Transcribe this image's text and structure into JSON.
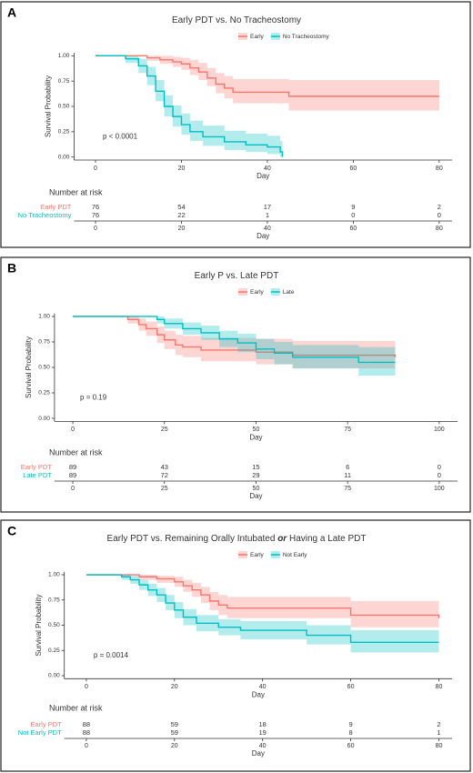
{
  "chart_data": [
    {
      "type": "survival",
      "panel": "A",
      "title_parts": [
        "Early PDT vs. No Tracheostomy"
      ],
      "xlabel": "Day",
      "ylabel": "Survival Probability",
      "annotation": "p < 0.0001",
      "risk_title": "Number at risk",
      "xlim": [
        -5,
        83
      ],
      "xticks": [
        0,
        20,
        40,
        60,
        80
      ],
      "ylim": [
        -0.03,
        1.03
      ],
      "yticks": [
        {
          "value": 0,
          "label": "0.00"
        },
        {
          "value": 0.25,
          "label": "0.25"
        },
        {
          "value": 0.5,
          "label": "0.50"
        },
        {
          "value": 0.75,
          "label": "0.75"
        },
        {
          "value": 1,
          "label": "1.00"
        }
      ],
      "series": [
        {
          "name": "Early",
          "risk_label": "Early PDT",
          "color": "#F8766D",
          "x": [
            0,
            8,
            12,
            15,
            18,
            20,
            22,
            24,
            26,
            28,
            30,
            32,
            45,
            80
          ],
          "values": [
            1,
            1,
            0.98,
            0.96,
            0.94,
            0.92,
            0.88,
            0.84,
            0.78,
            0.72,
            0.68,
            0.64,
            0.6,
            0.6
          ],
          "lower": [
            1,
            1,
            0.95,
            0.92,
            0.89,
            0.86,
            0.81,
            0.76,
            0.7,
            0.63,
            0.58,
            0.53,
            0.46,
            0.46
          ],
          "upper": [
            1,
            1,
            1,
            1,
            0.99,
            0.98,
            0.96,
            0.93,
            0.88,
            0.83,
            0.8,
            0.77,
            0.76,
            0.76
          ],
          "at_risk": [
            76,
            54,
            17,
            9,
            2
          ]
        },
        {
          "name": "No Tracheostomy",
          "risk_label": "No Tracheostomy",
          "color": "#00BFC4",
          "x": [
            0,
            7,
            10,
            12,
            14,
            16,
            18,
            20,
            22,
            25,
            30,
            35,
            40,
            43,
            43.5
          ],
          "values": [
            1,
            0.97,
            0.9,
            0.8,
            0.65,
            0.5,
            0.4,
            0.32,
            0.25,
            0.2,
            0.15,
            0.12,
            0.1,
            0.05,
            0
          ],
          "lower": [
            1,
            0.93,
            0.83,
            0.71,
            0.55,
            0.4,
            0.3,
            0.22,
            0.16,
            0.11,
            0.07,
            0.05,
            0.03,
            0,
            0
          ],
          "upper": [
            1,
            1,
            0.97,
            0.89,
            0.76,
            0.61,
            0.51,
            0.43,
            0.36,
            0.31,
            0.26,
            0.23,
            0.21,
            0.16,
            0.16
          ],
          "at_risk": [
            76,
            22,
            1,
            0,
            0
          ]
        }
      ]
    },
    {
      "type": "survival",
      "panel": "B",
      "title_parts": [
        "Early P vs. Late PDT"
      ],
      "xlabel": "Day",
      "ylabel": "Survival Probability",
      "annotation": "p = 0.19",
      "risk_title": "Number at risk",
      "xlim": [
        -5,
        105
      ],
      "xticks": [
        0,
        25,
        50,
        75,
        100
      ],
      "ylim": [
        -0.03,
        1.03
      ],
      "yticks": [
        {
          "value": 0,
          "label": "0.00"
        },
        {
          "value": 0.25,
          "label": "0.25"
        },
        {
          "value": 0.5,
          "label": "0.50"
        },
        {
          "value": 0.75,
          "label": "0.75"
        },
        {
          "value": 1,
          "label": "1.00"
        }
      ],
      "series": [
        {
          "name": "Early",
          "risk_label": "Early PDT",
          "color": "#F8766D",
          "x": [
            0,
            10,
            15,
            18,
            20,
            23,
            25,
            28,
            30,
            35,
            50,
            60,
            88
          ],
          "values": [
            1,
            1,
            0.97,
            0.92,
            0.88,
            0.82,
            0.77,
            0.72,
            0.7,
            0.67,
            0.65,
            0.62,
            0.6
          ],
          "lower": [
            1,
            1,
            0.93,
            0.86,
            0.81,
            0.74,
            0.68,
            0.62,
            0.6,
            0.56,
            0.53,
            0.49,
            0.46
          ],
          "upper": [
            1,
            1,
            1,
            0.98,
            0.95,
            0.9,
            0.86,
            0.82,
            0.81,
            0.79,
            0.78,
            0.76,
            0.75
          ],
          "at_risk": [
            89,
            43,
            15,
            6,
            0
          ]
        },
        {
          "name": "Late",
          "risk_label": "Late PDT",
          "color": "#00BFC4",
          "x": [
            0,
            20,
            23,
            25,
            30,
            35,
            40,
            45,
            50,
            55,
            60,
            70,
            78,
            88
          ],
          "values": [
            1,
            1,
            0.97,
            0.93,
            0.88,
            0.84,
            0.78,
            0.74,
            0.68,
            0.64,
            0.6,
            0.6,
            0.55,
            0.55
          ],
          "lower": [
            1,
            1,
            0.93,
            0.88,
            0.82,
            0.77,
            0.7,
            0.65,
            0.58,
            0.53,
            0.49,
            0.49,
            0.42,
            0.42
          ],
          "upper": [
            1,
            1,
            1,
            0.98,
            0.94,
            0.91,
            0.86,
            0.83,
            0.78,
            0.75,
            0.72,
            0.72,
            0.7,
            0.7
          ],
          "at_risk": [
            89,
            72,
            29,
            11,
            0
          ]
        }
      ]
    },
    {
      "type": "survival",
      "panel": "C",
      "title_parts": [
        "Early PDT vs. Remaining Orally Intubated ",
        "or",
        " Having a Late PDT"
      ],
      "xlabel": "Day",
      "ylabel": "Survival Probability",
      "annotation": "p = 0.0014",
      "risk_title": "Number at risk",
      "xlim": [
        -5,
        83
      ],
      "xticks": [
        0,
        20,
        40,
        60,
        80
      ],
      "ylim": [
        -0.03,
        1.03
      ],
      "yticks": [
        {
          "value": 0,
          "label": "0.00"
        },
        {
          "value": 0.25,
          "label": "0.25"
        },
        {
          "value": 0.5,
          "label": "0.50"
        },
        {
          "value": 0.75,
          "label": "0.75"
        },
        {
          "value": 1,
          "label": "1.00"
        }
      ],
      "series": [
        {
          "name": "Early",
          "risk_label": "Early PDT",
          "color": "#F8766D",
          "x": [
            0,
            8,
            12,
            16,
            20,
            22,
            24,
            26,
            28,
            30,
            32,
            60,
            80
          ],
          "values": [
            1,
            1,
            0.98,
            0.96,
            0.93,
            0.89,
            0.85,
            0.8,
            0.74,
            0.7,
            0.67,
            0.6,
            0.57
          ],
          "lower": [
            1,
            1,
            0.95,
            0.92,
            0.88,
            0.83,
            0.78,
            0.72,
            0.65,
            0.6,
            0.57,
            0.48,
            0.42
          ],
          "upper": [
            1,
            1,
            1,
            0.99,
            0.98,
            0.95,
            0.92,
            0.88,
            0.83,
            0.8,
            0.78,
            0.74,
            0.72
          ],
          "at_risk": [
            88,
            59,
            18,
            9,
            2
          ]
        },
        {
          "name": "Not Early",
          "risk_label": "Not Early PDT",
          "color": "#00BFC4",
          "x": [
            0,
            8,
            10,
            12,
            14,
            16,
            18,
            20,
            22,
            25,
            30,
            35,
            50,
            60,
            80
          ],
          "values": [
            1,
            0.98,
            0.95,
            0.9,
            0.85,
            0.8,
            0.72,
            0.65,
            0.58,
            0.52,
            0.48,
            0.45,
            0.4,
            0.33,
            0.33
          ],
          "lower": [
            1,
            0.95,
            0.91,
            0.85,
            0.79,
            0.73,
            0.65,
            0.57,
            0.5,
            0.44,
            0.4,
            0.36,
            0.31,
            0.23,
            0.23
          ],
          "upper": [
            1,
            1,
            0.99,
            0.95,
            0.91,
            0.87,
            0.8,
            0.73,
            0.66,
            0.6,
            0.56,
            0.54,
            0.5,
            0.45,
            0.45
          ],
          "at_risk": [
            88,
            59,
            19,
            8,
            1
          ]
        }
      ]
    }
  ]
}
